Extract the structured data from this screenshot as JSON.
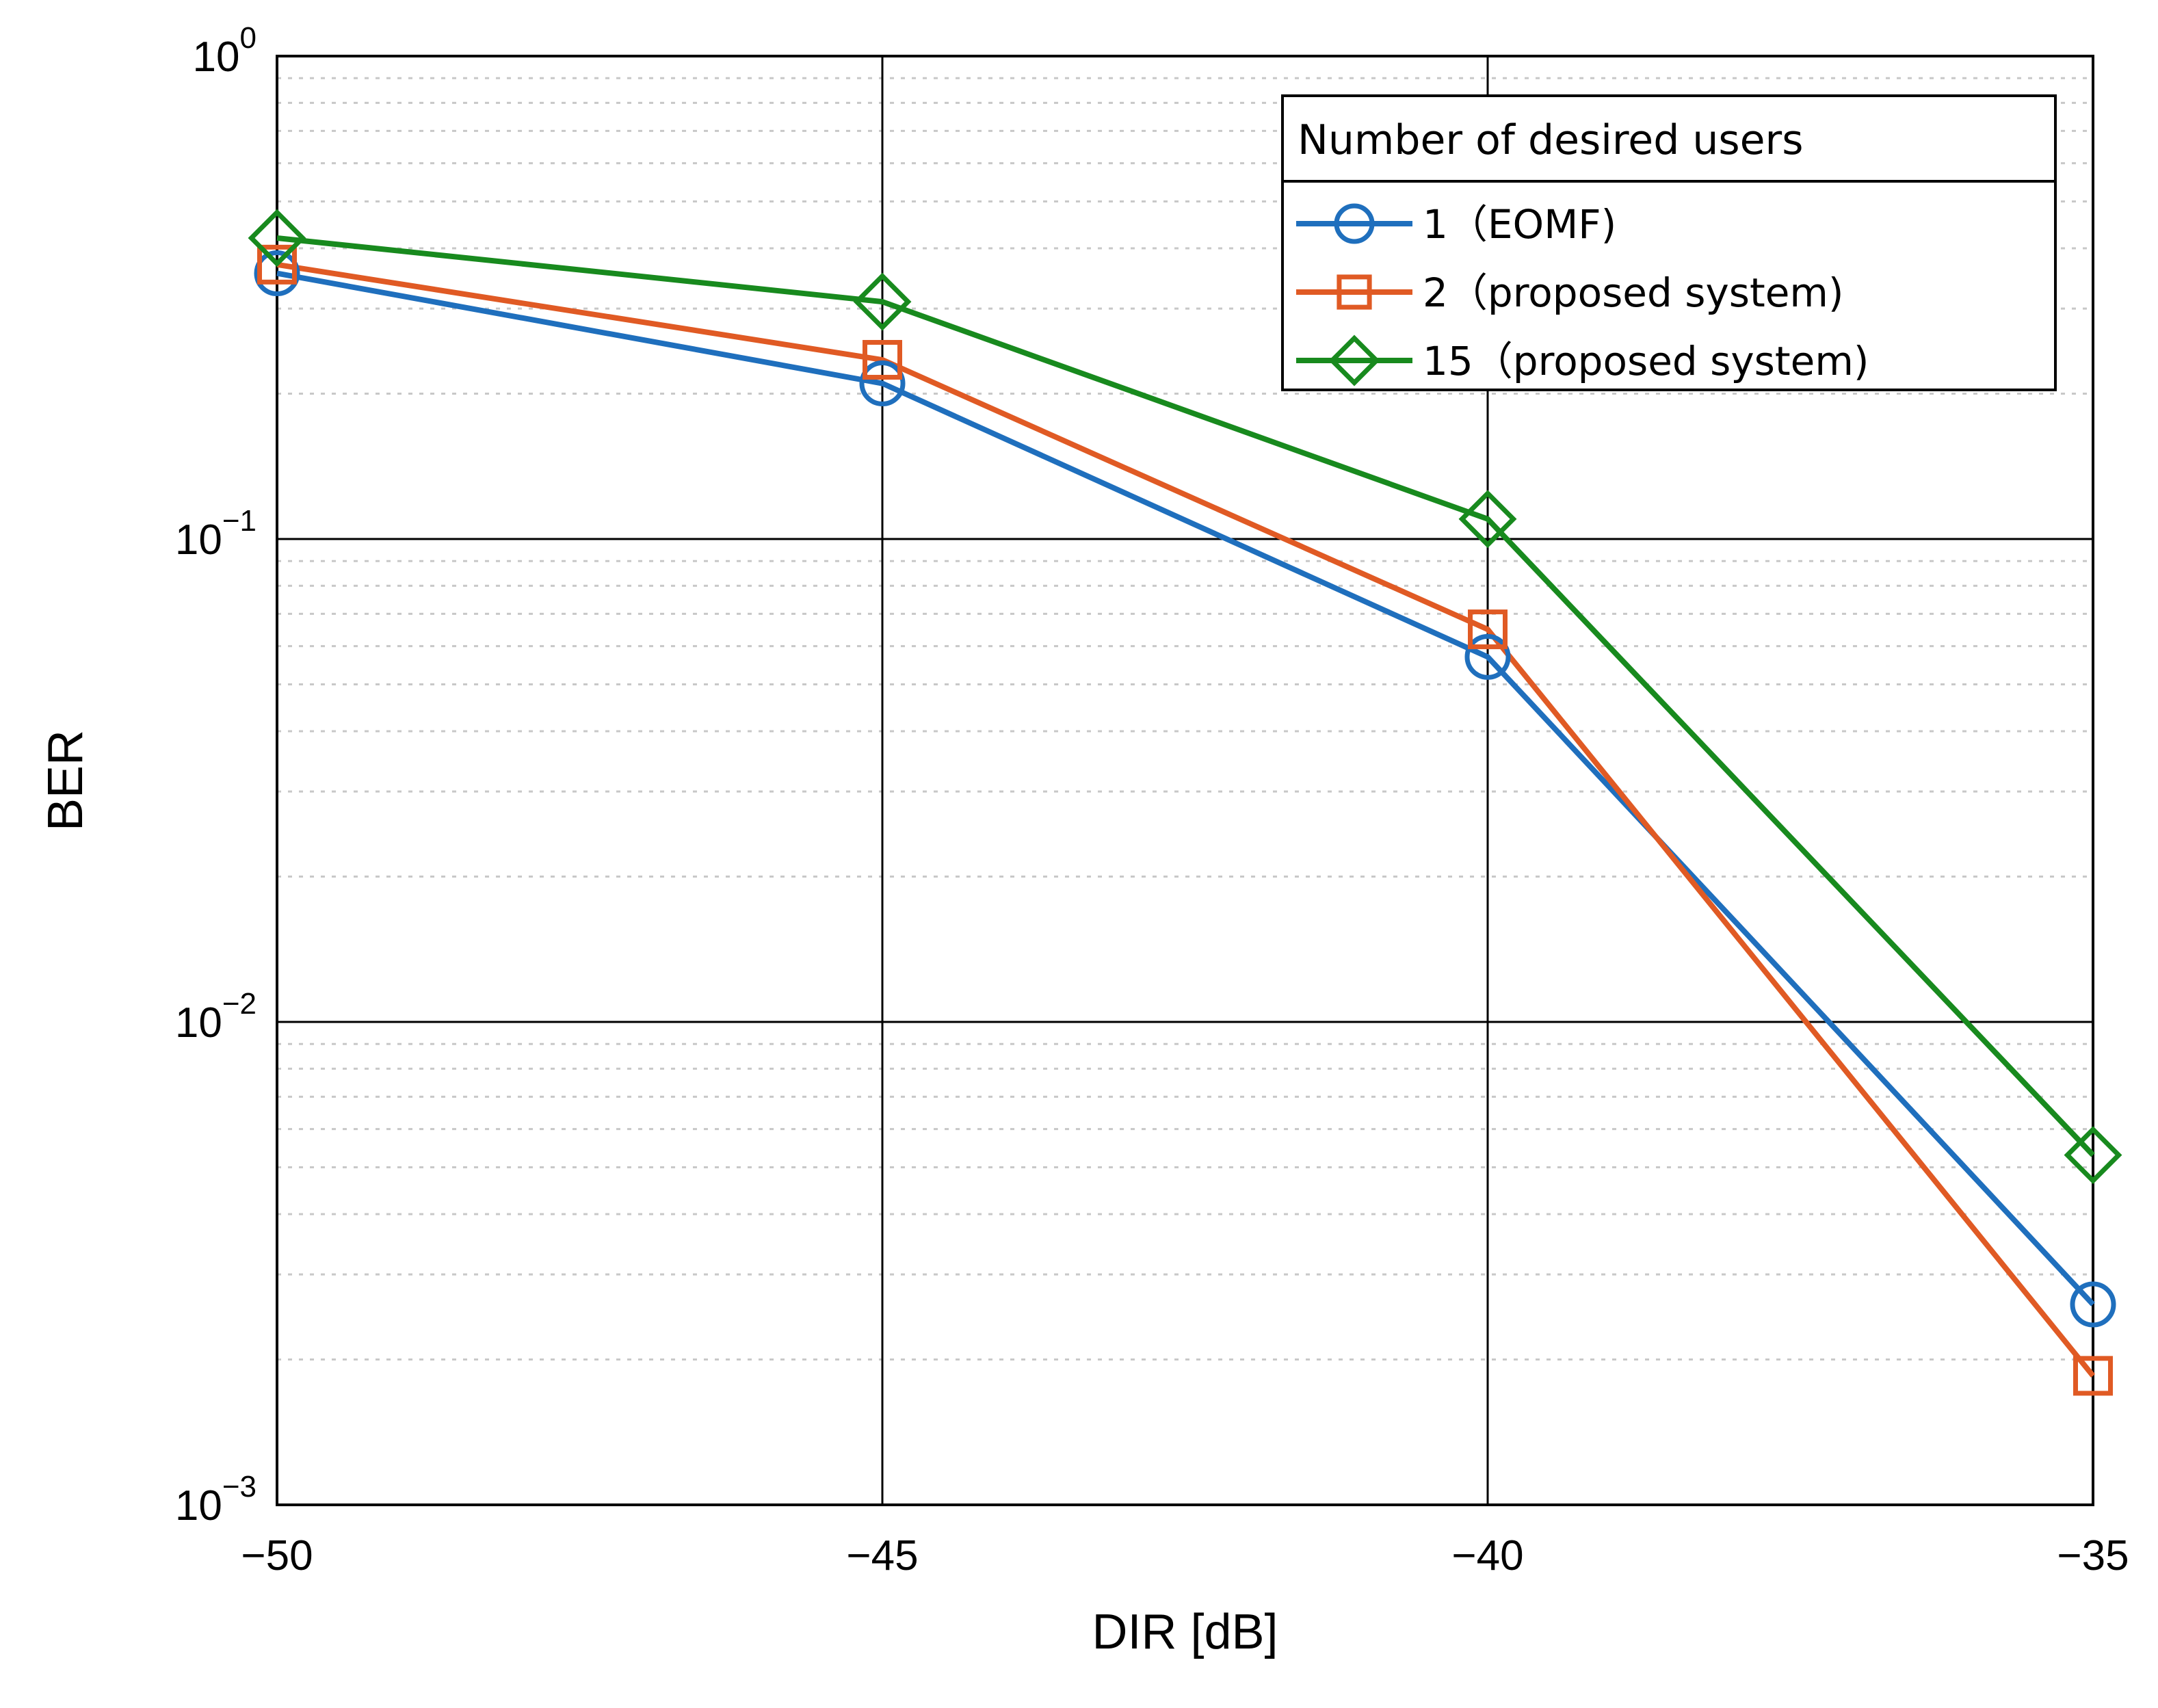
{
  "chart_data": {
    "type": "line",
    "title": "",
    "xlabel": "DIR [dB]",
    "ylabel": "BER",
    "x": [
      -50,
      -45,
      -40,
      -35
    ],
    "xlim": [
      -50,
      -35
    ],
    "ylim": [
      0.001,
      1
    ],
    "yscale": "log",
    "grid": true,
    "x_tick_labels": [
      "−50",
      "−45",
      "−40",
      "−35"
    ],
    "y_ticks": [
      {
        "base": "10",
        "exp": "0"
      },
      {
        "base": "10",
        "exp": "−1"
      },
      {
        "base": "10",
        "exp": "−2"
      },
      {
        "base": "10",
        "exp": "−3"
      }
    ],
    "legend": {
      "title": "Number of desired users",
      "position": "top-right"
    },
    "series": [
      {
        "name": "1（EOMF)",
        "color": "#1f6fbd",
        "marker": "circle",
        "values": [
          0.355,
          0.21,
          0.057,
          0.0026
        ]
      },
      {
        "name": "2（proposed system)",
        "color": "#e05a24",
        "marker": "square",
        "values": [
          0.37,
          0.235,
          0.065,
          0.00185
        ]
      },
      {
        "name": "15（proposed system)",
        "color": "#188a1e",
        "marker": "diamond",
        "values": [
          0.42,
          0.31,
          0.11,
          0.0053
        ]
      }
    ]
  }
}
